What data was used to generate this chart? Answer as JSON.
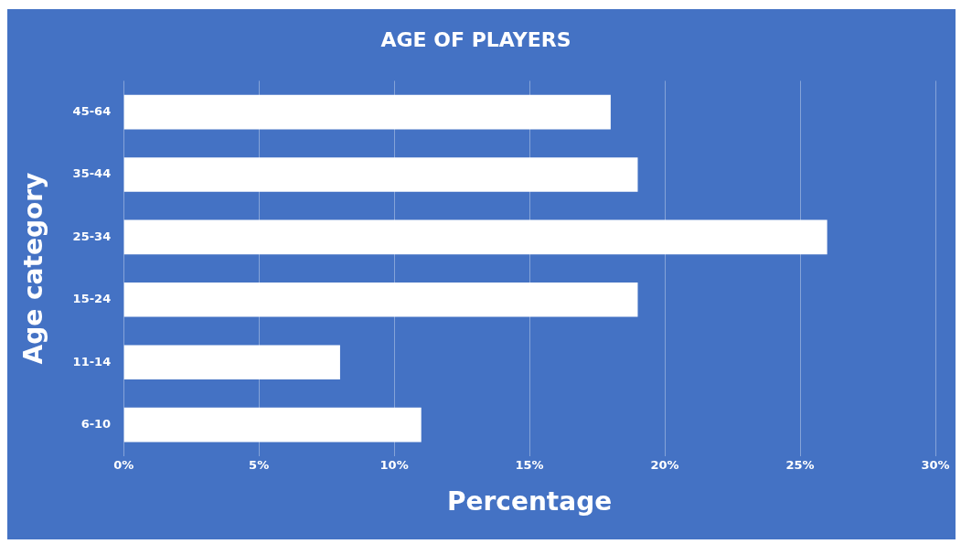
{
  "chart_data": {
    "type": "bar",
    "orientation": "horizontal",
    "title": "AGE OF PLAYERS",
    "xlabel": "Percentage",
    "ylabel": "Age category",
    "categories": [
      "45-64",
      "35-44",
      "25-34",
      "15-24",
      "11-14",
      "6-10"
    ],
    "values": [
      18,
      19,
      26,
      19,
      8,
      11
    ],
    "color": "#ffffff",
    "xlim": [
      0,
      30
    ],
    "xticks": [
      {
        "value": 0,
        "label": "0%"
      },
      {
        "value": 5,
        "label": "5%"
      },
      {
        "value": 10,
        "label": "10%"
      },
      {
        "value": 15,
        "label": "15%"
      },
      {
        "value": 20,
        "label": "20%"
      },
      {
        "value": 25,
        "label": "25%"
      },
      {
        "value": 30,
        "label": "30%"
      }
    ],
    "grid": "x",
    "legend": false
  }
}
